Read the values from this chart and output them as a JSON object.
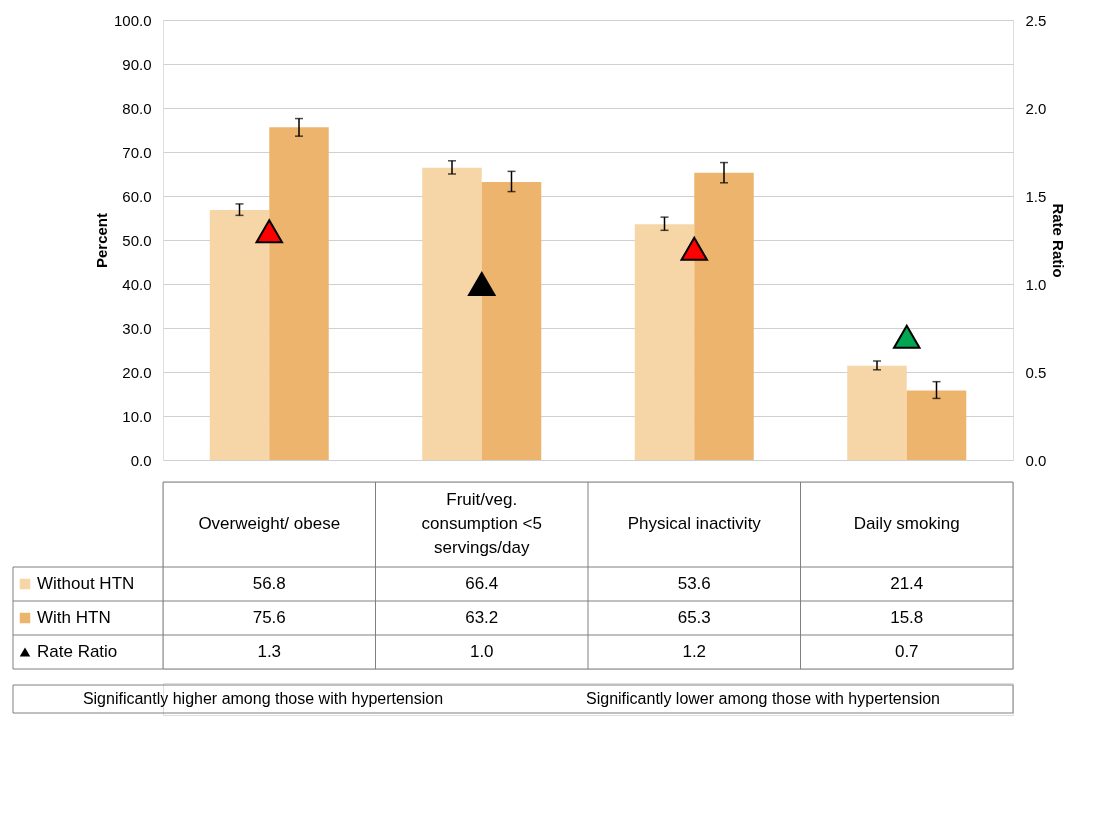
{
  "chart_data": {
    "type": "bar",
    "categories": [
      "Overweight/ obese",
      "Fruit/veg. consumption <5 servings/day",
      "Physical inactivity",
      "Daily smoking"
    ],
    "ylabel": "Percent",
    "y2label": "Rate Ratio",
    "ylim": [
      0,
      100
    ],
    "yticks": [
      {
        "value": 0,
        "label": "0.0"
      },
      {
        "value": 10,
        "label": "10.0"
      },
      {
        "value": 20,
        "label": "20.0"
      },
      {
        "value": 30,
        "label": "30.0"
      },
      {
        "value": 40,
        "label": "40.0"
      },
      {
        "value": 50,
        "label": "50.0"
      },
      {
        "value": 60,
        "label": "60.0"
      },
      {
        "value": 70,
        "label": "70.0"
      },
      {
        "value": 80,
        "label": "80.0"
      },
      {
        "value": 90,
        "label": "90.0"
      },
      {
        "value": 100,
        "label": "100.0"
      }
    ],
    "y2lim": [
      0,
      2.5
    ],
    "y2ticks": [
      {
        "value": 0,
        "label": "0.0"
      },
      {
        "value": 0.5,
        "label": "0.5"
      },
      {
        "value": 1,
        "label": "1.0"
      },
      {
        "value": 1.5,
        "label": "1.5"
      },
      {
        "value": 2,
        "label": "2.0"
      },
      {
        "value": 2.5,
        "label": "2.5"
      }
    ],
    "grid": "y",
    "legend": "bottom",
    "series": [
      {
        "name": "Without HTN",
        "color": "#f6d5a7",
        "values": [
          56.8,
          66.4,
          53.6,
          21.4
        ],
        "value_labels": [
          "56.8",
          "66.4",
          "53.6",
          "21.4"
        ],
        "errors": [
          [
            55.6,
            58.2
          ],
          [
            65.0,
            68.0
          ],
          [
            52.2,
            55.2
          ],
          [
            20.5,
            22.5
          ]
        ]
      },
      {
        "name": "With HTN",
        "color": "#edb46e",
        "values": [
          75.6,
          63.2,
          65.3,
          15.8
        ],
        "value_labels": [
          "75.6",
          "63.2",
          "65.3",
          "15.8"
        ],
        "errors": [
          [
            73.6,
            77.6
          ],
          [
            61.0,
            65.6
          ],
          [
            63.0,
            67.6
          ],
          [
            14.0,
            17.8
          ]
        ]
      },
      {
        "name": "Rate Ratio",
        "type": "scatter",
        "axis": "y2",
        "marker": "triangle",
        "color": "#000000",
        "colors": [
          "#ff0000",
          "#000000",
          "#ff0000",
          "#00a651"
        ],
        "values": [
          1.3,
          1.0,
          1.2,
          0.7
        ],
        "value_labels": [
          "1.3",
          "1.0",
          "1.2",
          "0.7"
        ]
      }
    ],
    "annotations": [
      "Significantly higher among those with hypertension",
      "Significantly lower among those with hypertension"
    ]
  }
}
